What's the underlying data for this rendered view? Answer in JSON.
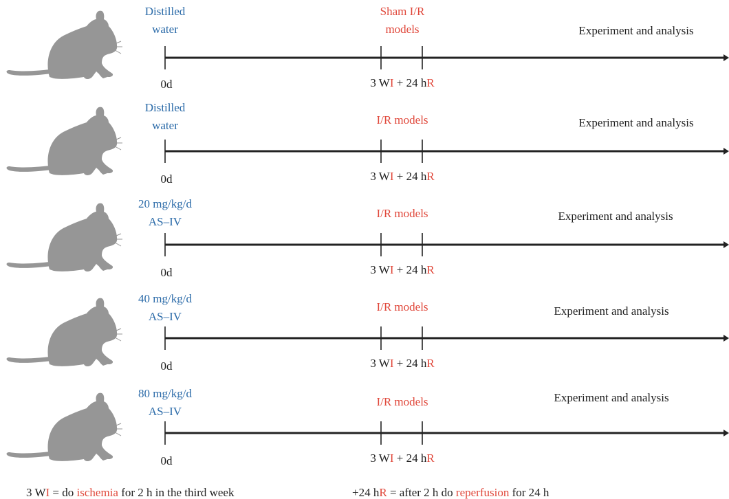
{
  "colors": {
    "treatment": "#2a6aa8",
    "model": "#e0473a",
    "text": "#1e1e1e",
    "rat": "#969696"
  },
  "rows": [
    {
      "treatment": [
        "Distilled",
        "water"
      ],
      "model": [
        "Sham I/R",
        "models"
      ],
      "experiment": "Experiment and analysis",
      "start": "0d",
      "t_num": "3 W",
      "t_i": "I",
      "t_mid": " + 24 h",
      "t_r": "R"
    },
    {
      "treatment": [
        "Distilled",
        "water"
      ],
      "model": [
        "I/R models"
      ],
      "experiment": "Experiment and analysis",
      "start": "0d",
      "t_num": "3 W",
      "t_i": "I",
      "t_mid": " + 24 h",
      "t_r": "R"
    },
    {
      "treatment": [
        "20 mg/kg/d",
        "AS–IV"
      ],
      "model": [
        "I/R models"
      ],
      "experiment": "Experiment and analysis",
      "start": "0d",
      "t_num": "3 W",
      "t_i": "I",
      "t_mid": " + 24 h",
      "t_r": "R"
    },
    {
      "treatment": [
        "40 mg/kg/d",
        "AS–IV"
      ],
      "model": [
        "I/R models"
      ],
      "experiment": "Experiment and analysis",
      "start": "0d",
      "t_num": "3 W",
      "t_i": "I",
      "t_mid": " + 24 h",
      "t_r": "R"
    },
    {
      "treatment": [
        "80 mg/kg/d",
        "AS–IV"
      ],
      "model": [
        "I/R models"
      ],
      "experiment": "Experiment and analysis",
      "start": "0d",
      "t_num": "3 W",
      "t_i": "I",
      "t_mid": " + 24 h",
      "t_r": "R"
    }
  ],
  "legend": {
    "left": {
      "p1": "3 W",
      "p2": "I",
      "p3": " = do ",
      "p4": "ischemia",
      "p5": " for 2 h in the third week"
    },
    "right": {
      "p1": "+24 h",
      "p2": "R",
      "p3": " = after 2 h do ",
      "p4": "reperfusion",
      "p5": " for 24 h"
    }
  }
}
